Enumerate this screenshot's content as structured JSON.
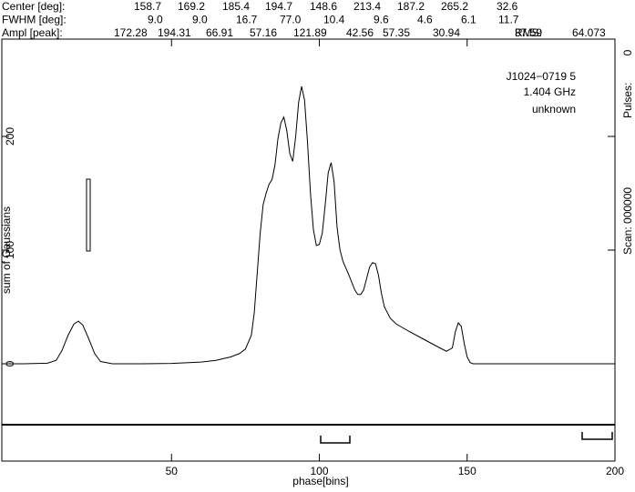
{
  "header": {
    "rows": [
      {
        "label": "Center [deg]:",
        "values": [
          "158.7",
          "169.2",
          "185.4",
          "194.7",
          "148.6",
          "213.4",
          "187.2",
          "265.2",
          "32.6"
        ]
      },
      {
        "label": "FWHM  [deg]:",
        "values": [
          "9.0",
          "9.0",
          "16.7",
          "77.0",
          "10.4",
          "9.6",
          "4.6",
          "6.1",
          "11.7"
        ]
      },
      {
        "label": "Ampl  [peak]:",
        "values": [
          "172.28",
          "194.31",
          "66.91",
          "57.16",
          "121.89",
          "42.56",
          "57.35",
          "30.94",
          "37.59"
        ]
      }
    ],
    "rms_label": "RMS:",
    "rms": "64.073"
  },
  "chart_data": {
    "type": "line",
    "xlabel": "phase[bins]",
    "ylabel": "sum of Gaussians",
    "annotations": [
      "J1024−0719 5",
      "1.404 GHz",
      "unknown"
    ],
    "side_texts": [
      "Scan: 000000",
      "Pulses:",
      "0"
    ],
    "color": "#000000",
    "xlim": [
      -7.4,
      200
    ],
    "ylim": [
      -85.6,
      285.6
    ],
    "xticks": [
      50,
      100,
      150,
      200
    ],
    "yticks": [
      0,
      100,
      200
    ],
    "x": [
      -7,
      0,
      8,
      11,
      13,
      15,
      17,
      18.5,
      20,
      22,
      24,
      26,
      30,
      40,
      50,
      60,
      65,
      70,
      73,
      75,
      77,
      78,
      79,
      80,
      81,
      82,
      83,
      84,
      85,
      86,
      87,
      88,
      89,
      90,
      91,
      92,
      93,
      94,
      95,
      96,
      97,
      98,
      99,
      100,
      101,
      102,
      103,
      104,
      105,
      106,
      107,
      108,
      110,
      112,
      113,
      114,
      115,
      116,
      117,
      118,
      119,
      120,
      121,
      122,
      124,
      126,
      130,
      135,
      140,
      143,
      145,
      146,
      147,
      148,
      149,
      150,
      151,
      152,
      160,
      200
    ],
    "values": [
      0,
      0,
      0.5,
      3,
      12,
      25,
      35,
      37.5,
      34,
      22,
      9,
      2,
      0,
      0,
      0.3,
      1.5,
      3,
      6,
      9,
      13,
      25,
      45,
      80,
      115,
      140,
      150,
      158,
      162,
      175,
      198,
      212,
      217,
      205,
      185,
      178,
      200,
      230,
      244,
      232,
      195,
      150,
      118,
      104,
      105,
      115,
      140,
      168,
      177,
      160,
      120,
      100,
      90,
      78,
      65,
      61,
      61,
      65,
      75,
      85,
      89,
      88,
      78,
      62,
      50,
      40,
      35,
      29,
      22,
      15,
      11,
      14,
      28,
      36,
      33,
      18,
      6,
      1,
      0,
      0,
      0
    ]
  }
}
